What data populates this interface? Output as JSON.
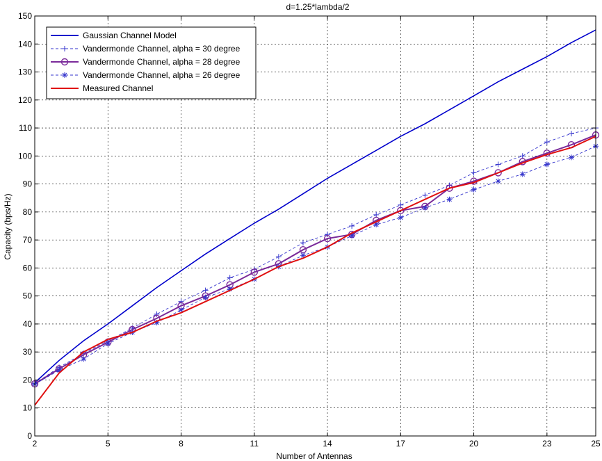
{
  "chart_data": {
    "type": "line",
    "title": "d=1.25*lambda/2",
    "xlabel": "Number of Antennas",
    "ylabel": "Capacity (bps/Hz)",
    "xlim": [
      2,
      25
    ],
    "ylim": [
      0,
      150
    ],
    "xticks": [
      2,
      5,
      8,
      11,
      14,
      17,
      20,
      23,
      25
    ],
    "yticks": [
      0,
      10,
      20,
      30,
      40,
      50,
      60,
      70,
      80,
      90,
      100,
      110,
      120,
      130,
      140,
      150
    ],
    "grid": true,
    "legend_position": "top-left",
    "x": [
      2,
      3,
      4,
      5,
      6,
      7,
      8,
      9,
      10,
      11,
      12,
      13,
      14,
      15,
      16,
      17,
      18,
      19,
      20,
      21,
      22,
      23,
      24,
      25
    ],
    "series": [
      {
        "name": "Gaussian Channel Model",
        "color": "#0000cc",
        "style": "solid",
        "marker": "none",
        "values": [
          19,
          27,
          34,
          40,
          46.5,
          53,
          59,
          65,
          70.5,
          76,
          81,
          86.5,
          92,
          97,
          102,
          107,
          111.5,
          116.5,
          121.5,
          126.5,
          131,
          135.5,
          140.5,
          145
        ]
      },
      {
        "name": "Vandermonde Channel, alpha = 30 degree",
        "color": "#3333cc",
        "style": "dashed",
        "marker": "plus",
        "values": [
          18.7,
          24.5,
          29.5,
          34,
          38.5,
          43.5,
          48,
          52,
          56.5,
          59.5,
          64,
          69,
          72,
          75,
          79,
          82.5,
          86,
          89.5,
          94,
          97,
          100,
          105,
          108,
          110
        ]
      },
      {
        "name": "Vandermonde Channel, alpha = 28 degree",
        "color": "#7a2a9a",
        "style": "solid",
        "marker": "circle",
        "values": [
          18.6,
          24,
          29,
          33.5,
          38,
          42,
          46.5,
          50,
          54,
          58.5,
          61.5,
          66.5,
          70.5,
          72,
          77,
          80.5,
          82,
          88.5,
          91,
          94,
          98,
          101,
          104,
          107.5
        ]
      },
      {
        "name": "Vandermonde Channel, alpha = 26 degree",
        "color": "#3333cc",
        "style": "dashed",
        "marker": "star",
        "values": [
          18.5,
          23.5,
          27.5,
          33,
          37,
          40.5,
          45,
          49.5,
          52.5,
          56,
          60.5,
          64.5,
          67.5,
          71.5,
          75.5,
          78,
          81.5,
          84.5,
          88,
          91,
          93.5,
          97,
          99.5,
          103.5
        ]
      },
      {
        "name": "Measured Channel",
        "color": "#e01010",
        "style": "solid",
        "marker": "none",
        "values": [
          11,
          22.5,
          30,
          34.5,
          37,
          41,
          44,
          48,
          52,
          56,
          60.5,
          63.5,
          67.5,
          72.5,
          76.5,
          80.5,
          84.5,
          88.5,
          90.5,
          94,
          97.5,
          100.5,
          103,
          107
        ]
      }
    ]
  }
}
